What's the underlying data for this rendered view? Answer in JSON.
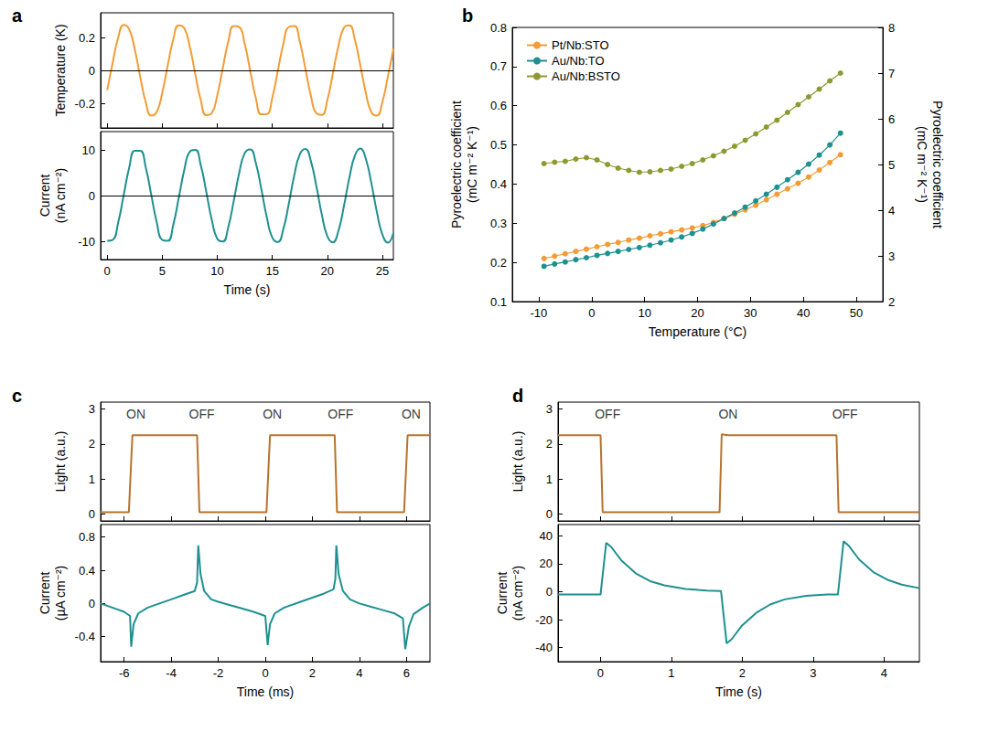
{
  "chart_data": [
    {
      "type": "line",
      "title": "a",
      "y_label": "Temperature (K)",
      "x": [
        0,
        0.5,
        1,
        1.5,
        2,
        2.5,
        3,
        3.5,
        4,
        4.5,
        5,
        5.5,
        6,
        6.5,
        7,
        7.5,
        8,
        8.5,
        9,
        9.5,
        10,
        10.5,
        11,
        11.5,
        12,
        12.5,
        13,
        13.5,
        14,
        14.5,
        15,
        15.5,
        16,
        16.5,
        17,
        17.5,
        18,
        18.5,
        19,
        19.5,
        20,
        20.5,
        21,
        21.5,
        22,
        22.5,
        23,
        23.5,
        24,
        24.5,
        25,
        25.5,
        26
      ],
      "series": [
        {
          "color": "#f39c34",
          "values": [
            -0.12,
            0.049,
            0.2,
            0.277,
            0.249,
            0.128,
            -0.041,
            -0.194,
            -0.275,
            -0.253,
            -0.136,
            0.032,
            0.188,
            0.274,
            0.257,
            0.144,
            -0.023,
            -0.181,
            -0.272,
            -0.26,
            -0.151,
            0.014,
            0.175,
            0.269,
            0.263,
            0.159,
            -0.006,
            -0.168,
            -0.267,
            -0.266,
            -0.166,
            -0.003,
            0.161,
            0.264,
            0.269,
            0.173,
            0.012,
            -0.153,
            -0.261,
            -0.271,
            -0.18,
            -0.021,
            0.146,
            0.258,
            0.273,
            0.186,
            0.03,
            -0.138,
            -0.254,
            -0.275,
            -0.193,
            -0.038,
            0.131
          ]
        }
      ],
      "xlim": [
        -0.6,
        26
      ],
      "xticks": [
        0,
        5,
        10,
        15,
        20,
        25
      ],
      "ylim": [
        -0.35,
        0.35
      ],
      "yticks": [
        -0.2,
        0,
        0.2
      ],
      "hline": 0,
      "grid": false,
      "tick_labels": "y"
    },
    {
      "type": "line",
      "x_label": "Time (s)",
      "y_label": "Current (nA cm⁻²)",
      "x": [
        0,
        0.5,
        1,
        1.5,
        2,
        2.5,
        3,
        3.5,
        4,
        4.5,
        5,
        5.5,
        6,
        6.5,
        7,
        7.5,
        8,
        8.5,
        9,
        9.5,
        10,
        10.5,
        11,
        11.5,
        12,
        12.5,
        13,
        13.5,
        14,
        14.5,
        15,
        15.5,
        16,
        16.5,
        17,
        17.5,
        18,
        18.5,
        19,
        19.5,
        20,
        20.5,
        21,
        21.5,
        22,
        22.5,
        23,
        23.5,
        24,
        24.5,
        25,
        25.5,
        26
      ],
      "series": [
        {
          "color": "#1f9090",
          "values": [
            -9.9,
            -9.7,
            -5.87,
            0.16,
            6.13,
            9.8,
            9.81,
            6.14,
            0.17,
            -5.87,
            -9.7,
            -9.9,
            -6.39,
            -0.49,
            5.6,
            9.59,
            9.98,
            6.64,
            0.81,
            -5.32,
            -9.46,
            -10.06,
            -6.89,
            -1.13,
            5.04,
            9.33,
            10.12,
            7.13,
            1.45,
            -4.76,
            -9.19,
            -10.18,
            -7.36,
            -1.77,
            4.47,
            9.04,
            10.22,
            7.58,
            2.09,
            -4.18,
            -8.88,
            -10.26,
            -7.79,
            -2.41,
            3.88,
            8.71,
            10.28,
            8.0,
            2.72,
            -3.58,
            -8.53,
            -10.3,
            -8.2
          ]
        }
      ],
      "xlim": [
        -0.6,
        26
      ],
      "xticks": [
        0,
        5,
        10,
        15,
        20,
        25
      ],
      "ylim": [
        -14,
        14
      ],
      "yticks": [
        -10,
        0,
        10
      ],
      "hline": 0,
      "grid": false
    },
    {
      "type": "line",
      "title": "b",
      "x_label": "Temperature (°C)",
      "y_label": "Pyroelectric coefficient (mC m⁻² K⁻¹)",
      "y2_label": "Pyroelectric coefficient (mC m⁻² K⁻¹)",
      "x": [
        -9,
        -7,
        -5,
        -3,
        -1,
        1,
        3,
        5,
        7,
        9,
        11,
        13,
        15,
        17,
        19,
        21,
        23,
        25,
        27,
        29,
        31,
        33,
        35,
        37,
        39,
        41,
        43,
        45,
        47
      ],
      "series": [
        {
          "name": "Pt/Nb:STO",
          "color": "#f39c34",
          "marker": "circle",
          "values": [
            0.21,
            0.216,
            0.222,
            0.228,
            0.234,
            0.24,
            0.246,
            0.251,
            0.257,
            0.262,
            0.268,
            0.273,
            0.278,
            0.283,
            0.288,
            0.294,
            0.302,
            0.312,
            0.323,
            0.334,
            0.346,
            0.36,
            0.374,
            0.388,
            0.402,
            0.418,
            0.436,
            0.455,
            0.475
          ]
        },
        {
          "name": "Au/Nb:TO",
          "color": "#1f9090",
          "marker": "circle",
          "values": [
            0.19,
            0.196,
            0.201,
            0.207,
            0.212,
            0.218,
            0.223,
            0.228,
            0.233,
            0.238,
            0.244,
            0.25,
            0.257,
            0.265,
            0.274,
            0.285,
            0.298,
            0.312,
            0.326,
            0.341,
            0.357,
            0.374,
            0.392,
            0.411,
            0.43,
            0.451,
            0.474,
            0.5,
            0.53
          ]
        },
        {
          "name": "Au/Nb:BSTO",
          "color": "#8c9a2e",
          "marker": "circle",
          "axis": "y2",
          "values": [
            5.02,
            5.05,
            5.07,
            5.12,
            5.15,
            5.1,
            5.0,
            4.92,
            4.87,
            4.83,
            4.84,
            4.87,
            4.9,
            4.96,
            5.02,
            5.1,
            5.19,
            5.29,
            5.4,
            5.53,
            5.67,
            5.82,
            5.97,
            6.14,
            6.31,
            6.48,
            6.65,
            6.83,
            7.0
          ]
        }
      ],
      "xlim": [
        -15,
        55
      ],
      "xticks": [
        -10,
        0,
        10,
        20,
        30,
        40,
        50
      ],
      "ylim": [
        0.1,
        0.8
      ],
      "yticks": [
        0.1,
        0.2,
        0.3,
        0.4,
        0.5,
        0.6,
        0.7,
        0.8
      ],
      "y2lim": [
        2,
        8
      ],
      "y2ticks": [
        2,
        3,
        4,
        5,
        6,
        7,
        8
      ],
      "legend": "upper left",
      "grid": false
    },
    {
      "type": "line",
      "title": "c",
      "y_label": "Light (a.u.)",
      "x": [
        -7,
        -5.8,
        -5.65,
        -2.9,
        -2.8,
        0.05,
        0.2,
        2.95,
        3.05,
        5.9,
        6.05,
        7
      ],
      "series": [
        {
          "color": "#b8732b",
          "values": [
            0.05,
            0.05,
            2.25,
            2.25,
            0.05,
            0.05,
            2.25,
            2.25,
            0.05,
            0.05,
            2.25,
            2.25
          ]
        }
      ],
      "annotations": [
        {
          "x": -5.5,
          "y": 2.85,
          "text": "ON"
        },
        {
          "x": -2.7,
          "y": 2.85,
          "text": "OFF"
        },
        {
          "x": 0.3,
          "y": 2.85,
          "text": "ON"
        },
        {
          "x": 3.2,
          "y": 2.85,
          "text": "OFF"
        },
        {
          "x": 6.2,
          "y": 2.85,
          "text": "ON"
        }
      ],
      "xlim": [
        -7,
        7
      ],
      "xticks": [
        -6,
        -4,
        -2,
        0,
        2,
        4,
        6
      ],
      "ylim": [
        -0.2,
        3.2
      ],
      "yticks": [
        0,
        1,
        2,
        3
      ],
      "grid": false,
      "tick_labels": "y"
    },
    {
      "type": "line",
      "x_label": "Time (ms)",
      "y_label": "Current (µA cm⁻²)",
      "x": [
        -7,
        -6.5,
        -6,
        -5.75,
        -5.7,
        -5.6,
        -5.4,
        -5,
        -4.5,
        -4,
        -3.5,
        -3,
        -2.9,
        -2.85,
        -2.75,
        -2.6,
        -2.3,
        -2,
        -1.5,
        -1,
        -0.5,
        0,
        0.1,
        0.2,
        0.4,
        0.8,
        1.5,
        2,
        2.5,
        2.9,
        2.98,
        3.02,
        3.12,
        3.3,
        3.6,
        4,
        4.5,
        5,
        5.5,
        5.85,
        5.95,
        6.1,
        6.3,
        6.7,
        7
      ],
      "series": [
        {
          "color": "#1f9090",
          "values": [
            0,
            -0.05,
            -0.1,
            -0.15,
            -0.52,
            -0.25,
            -0.12,
            -0.05,
            0,
            0.05,
            0.1,
            0.15,
            0.25,
            0.7,
            0.35,
            0.15,
            0.05,
            0.02,
            -0.02,
            -0.06,
            -0.1,
            -0.15,
            -0.5,
            -0.25,
            -0.12,
            -0.05,
            0.02,
            0.07,
            0.12,
            0.17,
            0.3,
            0.7,
            0.35,
            0.15,
            0.05,
            0,
            -0.04,
            -0.08,
            -0.12,
            -0.18,
            -0.55,
            -0.28,
            -0.13,
            -0.05,
            0
          ]
        }
      ],
      "xlim": [
        -7,
        7
      ],
      "xticks": [
        -6,
        -4,
        -2,
        0,
        2,
        4,
        6
      ],
      "ylim": [
        -0.7,
        0.95
      ],
      "yticks": [
        -0.4,
        0,
        0.4,
        0.8
      ],
      "grid": false
    },
    {
      "type": "line",
      "title": "d",
      "y_label": "Light (a.u.)",
      "x": [
        -0.6,
        0,
        0.03,
        1.68,
        1.71,
        1.8,
        3.33,
        3.36,
        4.5
      ],
      "series": [
        {
          "color": "#b8732b",
          "values": [
            2.25,
            2.25,
            0.05,
            0.05,
            2.28,
            2.25,
            2.25,
            0.05,
            0.05
          ]
        }
      ],
      "annotations": [
        {
          "x": 0.1,
          "y": 2.85,
          "text": "OFF"
        },
        {
          "x": 1.8,
          "y": 2.85,
          "text": "ON"
        },
        {
          "x": 3.45,
          "y": 2.85,
          "text": "OFF"
        }
      ],
      "xlim": [
        -0.6,
        4.5
      ],
      "xticks": [
        0,
        1,
        2,
        3,
        4
      ],
      "ylim": [
        -0.2,
        3.2
      ],
      "yticks": [
        0,
        1,
        2,
        3
      ],
      "grid": false,
      "tick_labels": "y"
    },
    {
      "type": "line",
      "x_label": "Time (s)",
      "y_label": "Current (nA cm⁻²)",
      "x": [
        -0.6,
        0,
        0.08,
        0.15,
        0.3,
        0.5,
        0.7,
        0.9,
        1.2,
        1.5,
        1.7,
        1.78,
        1.85,
        2,
        2.2,
        2.4,
        2.6,
        2.9,
        3.2,
        3.35,
        3.43,
        3.5,
        3.65,
        3.85,
        4.05,
        4.25,
        4.5
      ],
      "series": [
        {
          "color": "#1f9090",
          "values": [
            -2,
            -2,
            35,
            32,
            22,
            13,
            7.5,
            4.5,
            2,
            0.8,
            0.5,
            -37,
            -34,
            -24,
            -15,
            -9,
            -5.5,
            -3,
            -2,
            -2,
            36,
            33,
            23,
            14,
            8.5,
            5,
            2.5
          ]
        }
      ],
      "xlim": [
        -0.6,
        4.5
      ],
      "xticks": [
        0,
        1,
        2,
        3,
        4
      ],
      "ylim": [
        -50,
        48
      ],
      "yticks": [
        -40,
        -20,
        0,
        20,
        40
      ],
      "grid": false
    }
  ]
}
